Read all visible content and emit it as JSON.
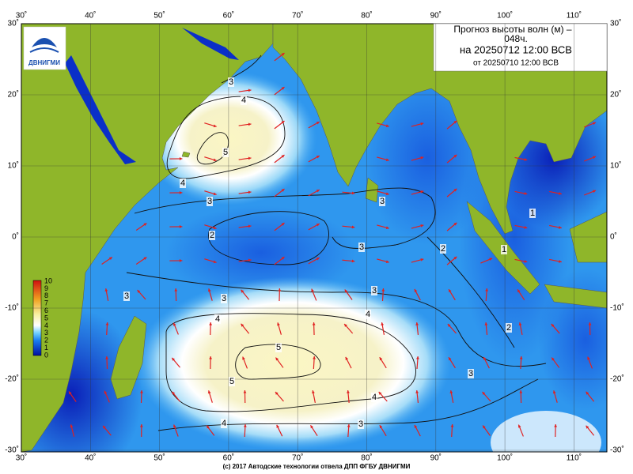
{
  "header": {
    "title_lines": [
      "Прогноз высоты волн (м) –",
      "048ч.",
      "на 20250712 12:00 ВСВ"
    ],
    "issued": "от 20250710 12:00 ВСВ"
  },
  "logo": {
    "text": "ДВНИГМИ"
  },
  "map": {
    "lon_ticks": [
      {
        "value": 30,
        "label": "30˚"
      },
      {
        "value": 40,
        "label": "40˚"
      },
      {
        "value": 50,
        "label": "50˚"
      },
      {
        "value": 60,
        "label": "60˚"
      },
      {
        "value": 70,
        "label": "70˚"
      },
      {
        "value": 80,
        "label": "80˚"
      },
      {
        "value": 90,
        "label": "90˚"
      },
      {
        "value": 100,
        "label": "100˚"
      },
      {
        "value": 110,
        "label": "110˚"
      }
    ],
    "lat_ticks": [
      {
        "value": 30,
        "label": "30˚"
      },
      {
        "value": 20,
        "label": "20˚"
      },
      {
        "value": 10,
        "label": "10˚"
      },
      {
        "value": 0,
        "label": "0˚"
      },
      {
        "value": -10,
        "label": "-10˚"
      },
      {
        "value": -20,
        "label": "-20˚"
      },
      {
        "value": -30,
        "label": "-30˚"
      }
    ]
  },
  "colorbar": {
    "labels": [
      10,
      9,
      8,
      7,
      6,
      5,
      4,
      3,
      2,
      1,
      0
    ]
  },
  "contours": {
    "labels": [
      3,
      4,
      5,
      4,
      3,
      2,
      3,
      3,
      2,
      3,
      3,
      3,
      4,
      4,
      5,
      5,
      4,
      4,
      3,
      3,
      2,
      1,
      1
    ]
  },
  "footer": "(c) 2017 Автодские технологии отвела ДПП ФГБУ ДВНИГМИ"
}
